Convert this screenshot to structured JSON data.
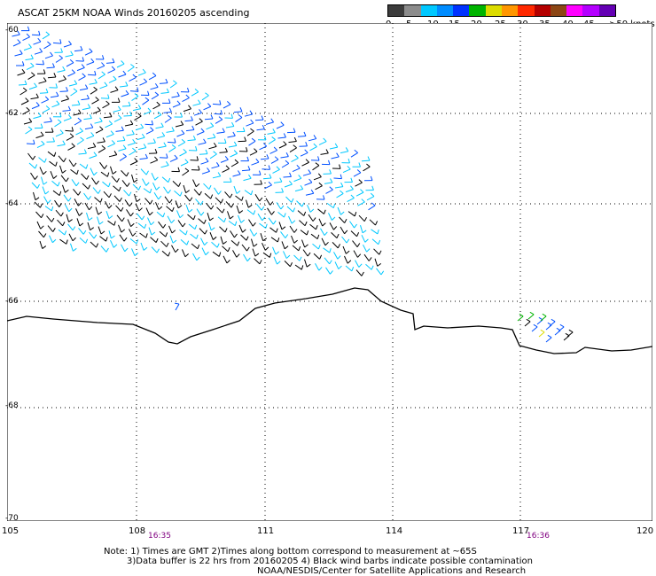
{
  "title": "ASCAT 25KM NOAA Winds 20160205 ascending",
  "legend": {
    "labels": [
      "0",
      "5",
      "10",
      "15",
      "20",
      "25",
      "30",
      "35",
      "40",
      "45",
      ">50 knots"
    ],
    "colors": [
      "#3c3c3c",
      "#8c8c8c",
      "#00c8ff",
      "#008cff",
      "#0032ff",
      "#00b400",
      "#dcdc00",
      "#ff9600",
      "#ff2800",
      "#b40000",
      "#8c4614",
      "#ff00ff",
      "#b400ff",
      "#6400b4"
    ]
  },
  "map": {
    "lat_labels": [
      "-60",
      "-62",
      "-64",
      "-66",
      "-68",
      "-70"
    ],
    "lon_labels": [
      "105",
      "108",
      "111",
      "114",
      "117",
      "120"
    ],
    "pass_times": [
      "16:35",
      "16:36"
    ],
    "barb_colors": {
      "contaminated": "#000000",
      "light": "#00c8ff",
      "moderate": "#0050ff",
      "green": "#00b400",
      "yellow": "#dcdc00"
    }
  },
  "notes": {
    "line1": "Note: 1) Times are GMT 2)Times along bottom correspond to measurement at ~65S",
    "line2": "3)Data buffer is 22 hrs from 20160205 4) Black wind barbs indicate possible contamination",
    "line3": "NOAA/NESDIS/Center for Satellite Applications and Research"
  }
}
